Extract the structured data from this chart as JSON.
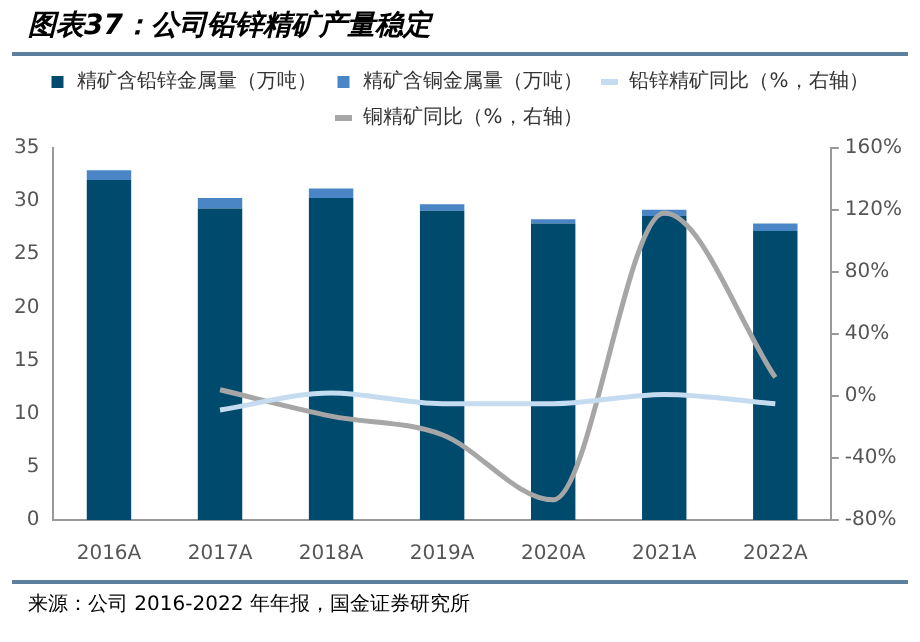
{
  "chart_data": {
    "type": "bar",
    "title": "图表37：公司铅锌精矿产量稳定",
    "categories": [
      "2016A",
      "2017A",
      "2018A",
      "2019A",
      "2020A",
      "2021A",
      "2022A"
    ],
    "stacked": true,
    "series": [
      {
        "name": "精矿含铅锌金属量（万吨）",
        "color": "#004a6e",
        "values": [
          32.0,
          29.3,
          30.3,
          29.1,
          27.9,
          28.6,
          27.2
        ]
      },
      {
        "name": "精矿含铜金属量（万吨）",
        "color": "#4a86c5",
        "values": [
          0.9,
          1.0,
          0.9,
          0.6,
          0.4,
          0.6,
          0.7
        ]
      },
      {
        "name": "铅锌精矿同比（%，右轴）",
        "type": "line",
        "axis": "y2",
        "color": "#c5dcf0",
        "values": [
          null,
          -9,
          2,
          -5,
          -5,
          1,
          -5
        ]
      },
      {
        "name": "铜精矿同比（%，右轴）",
        "type": "line",
        "axis": "y2",
        "color": "#a6a6a6",
        "values": [
          null,
          4,
          -13,
          -25,
          -67,
          118,
          12
        ]
      }
    ],
    "ylim": [
      0,
      35
    ],
    "yticks": [
      0,
      5,
      10,
      15,
      20,
      25,
      30,
      35
    ],
    "y2lim": [
      -80,
      160
    ],
    "y2ticks": [
      {
        "value": -80,
        "label": "-80%"
      },
      {
        "value": -40,
        "label": "-40%"
      },
      {
        "value": 0,
        "label": "0%"
      },
      {
        "value": 40,
        "label": "40%"
      },
      {
        "value": 80,
        "label": "80%"
      },
      {
        "value": 120,
        "label": "120%"
      },
      {
        "value": 160,
        "label": "160%"
      }
    ],
    "grid": false,
    "legend": "top",
    "marker": "none",
    "annotations": [
      "来源：公司 2016-2022 年年报，国金证券研究所"
    ]
  }
}
